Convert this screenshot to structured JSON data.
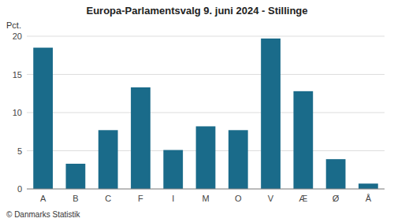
{
  "chart_data": {
    "type": "bar",
    "title": "Europa-Parlamentsvalg 9. juni 2024 - Stillinge",
    "ylabel": "Pct.",
    "categories": [
      "A",
      "B",
      "C",
      "F",
      "I",
      "M",
      "O",
      "V",
      "Æ",
      "Ø",
      "Å"
    ],
    "values": [
      18.5,
      3.3,
      7.7,
      13.3,
      5.1,
      8.2,
      7.7,
      19.7,
      12.8,
      3.9,
      0.7
    ],
    "color": "#1a6b8a",
    "ylim": [
      0,
      20
    ],
    "yticks": [
      0,
      5,
      10,
      15,
      20
    ],
    "grid": true,
    "annotations": [
      "© Danmarks Statistik"
    ]
  }
}
